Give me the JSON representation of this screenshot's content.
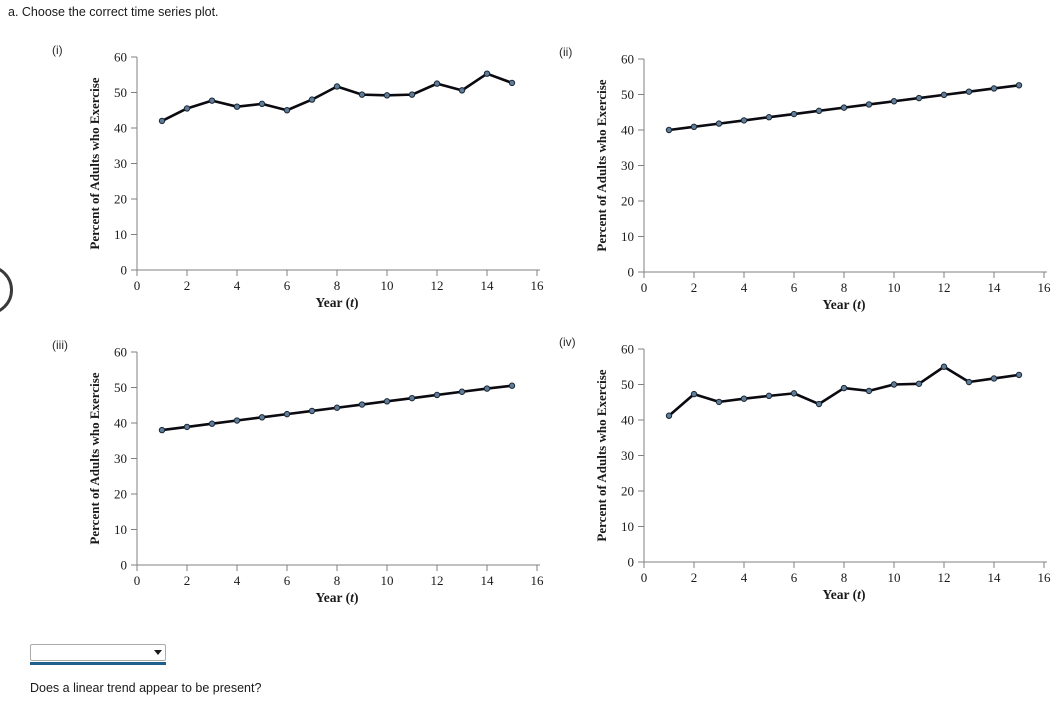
{
  "header": {
    "title": "a. Choose the correct time series plot."
  },
  "question": {
    "text": "Does a linear trend appear to be present?"
  },
  "dropdown": {
    "value": "",
    "state": "empty-awaiting-selection"
  },
  "colors": {
    "accent_blue": "#1f5f8b",
    "line": "#0a0a10",
    "marker_fill": "#5f7d9a",
    "marker_stroke": "#1a2633",
    "axis": "#808080",
    "tick_text": "#1a1a1a"
  },
  "chart_data": [
    {
      "id": "i",
      "label": "(i)",
      "type": "line",
      "xlabel": "Year (t)",
      "ylabel": "Percent of Adults who Exercise",
      "x": [
        1,
        2,
        3,
        4,
        5,
        6,
        7,
        8,
        9,
        10,
        11,
        12,
        13,
        14,
        15
      ],
      "values": [
        42,
        45.5,
        47.7,
        46,
        46.8,
        45,
        48,
        51.7,
        49.4,
        49.2,
        49.4,
        52.5,
        50.6,
        55.3,
        52.7
      ],
      "xlim": [
        0,
        16
      ],
      "ylim": [
        0,
        60
      ],
      "xticks": [
        0,
        2,
        4,
        6,
        8,
        10,
        12,
        14,
        16
      ],
      "yticks": [
        0,
        10,
        20,
        30,
        40,
        50,
        60
      ],
      "grid": false,
      "legend": "none"
    },
    {
      "id": "ii",
      "label": "(ii)",
      "type": "line",
      "xlabel": "Year (t)",
      "ylabel": "Percent of Adults who Exercise",
      "x": [
        1,
        2,
        3,
        4,
        5,
        6,
        7,
        8,
        9,
        10,
        11,
        12,
        13,
        14,
        15
      ],
      "values": [
        40,
        40.9,
        41.8,
        42.7,
        43.6,
        44.5,
        45.4,
        46.3,
        47.2,
        48.1,
        49,
        49.9,
        50.8,
        51.7,
        52.6
      ],
      "xlim": [
        0,
        16
      ],
      "ylim": [
        0,
        60
      ],
      "xticks": [
        0,
        2,
        4,
        6,
        8,
        10,
        12,
        14,
        16
      ],
      "yticks": [
        0,
        10,
        20,
        30,
        40,
        50,
        60
      ],
      "grid": false,
      "legend": "none"
    },
    {
      "id": "iii",
      "label": "(iii)",
      "type": "line",
      "xlabel": "Year (t)",
      "ylabel": "Percent of Adults who Exercise",
      "x": [
        1,
        2,
        3,
        4,
        5,
        6,
        7,
        8,
        9,
        10,
        11,
        12,
        13,
        14,
        15
      ],
      "values": [
        38,
        38.9,
        39.8,
        40.7,
        41.6,
        42.5,
        43.4,
        44.3,
        45.2,
        46.1,
        47,
        47.9,
        48.8,
        49.7,
        50.5
      ],
      "xlim": [
        0,
        16
      ],
      "ylim": [
        0,
        60
      ],
      "xticks": [
        0,
        2,
        4,
        6,
        8,
        10,
        12,
        14,
        16
      ],
      "yticks": [
        0,
        10,
        20,
        30,
        40,
        50,
        60
      ],
      "grid": false,
      "legend": "none"
    },
    {
      "id": "iv",
      "label": "(iv)",
      "type": "line",
      "xlabel": "Year (t)",
      "ylabel": "Percent of Adults who Exercise",
      "x": [
        1,
        2,
        3,
        4,
        5,
        6,
        7,
        8,
        9,
        10,
        11,
        12,
        13,
        14,
        15
      ],
      "values": [
        41.2,
        47.3,
        45.1,
        46,
        46.8,
        47.5,
        44.5,
        49,
        48.2,
        50,
        50.2,
        55,
        50.7,
        51.7,
        52.7
      ],
      "xlim": [
        0,
        16
      ],
      "ylim": [
        0,
        60
      ],
      "xticks": [
        0,
        2,
        4,
        6,
        8,
        10,
        12,
        14,
        16
      ],
      "yticks": [
        0,
        10,
        20,
        30,
        40,
        50,
        60
      ],
      "grid": false,
      "legend": "none"
    }
  ]
}
